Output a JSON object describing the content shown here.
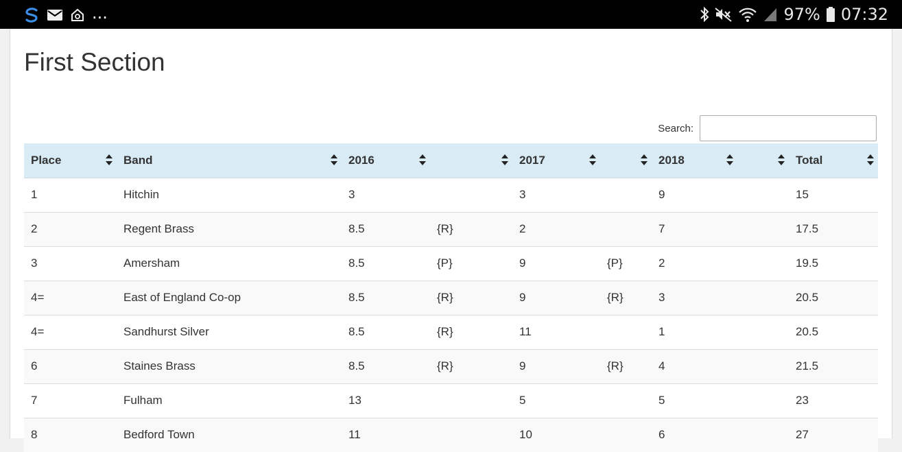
{
  "status_bar": {
    "icons_left": [
      "app-s-icon",
      "mail-icon",
      "home-icon"
    ],
    "more": "...",
    "icons_right": [
      "bluetooth-icon",
      "mute-icon",
      "wifi-icon",
      "signal-icon",
      "battery-icon"
    ],
    "battery_percent": "97%",
    "time": "07:32"
  },
  "page": {
    "title": "First Section"
  },
  "search": {
    "label": "Search:",
    "value": ""
  },
  "table": {
    "headers": [
      "Place",
      "Band",
      "2016",
      "",
      "2017",
      "",
      "2018",
      "",
      "Total"
    ],
    "rows": [
      [
        "1",
        "Hitchin",
        "3",
        "",
        "3",
        "",
        "9",
        "",
        "15"
      ],
      [
        "2",
        "Regent Brass",
        "8.5",
        "{R}",
        "2",
        "",
        "7",
        "",
        "17.5"
      ],
      [
        "3",
        "Amersham",
        "8.5",
        "{P}",
        "9",
        "{P}",
        "2",
        "",
        "19.5"
      ],
      [
        "4=",
        "East of England Co-op",
        "8.5",
        "{R}",
        "9",
        "{R}",
        "3",
        "",
        "20.5"
      ],
      [
        "4=",
        "Sandhurst Silver",
        "8.5",
        "{R}",
        "11",
        "",
        "1",
        "",
        "20.5"
      ],
      [
        "6",
        "Staines Brass",
        "8.5",
        "{R}",
        "9",
        "{R}",
        "4",
        "",
        "21.5"
      ],
      [
        "7",
        "Fulham",
        "13",
        "",
        "5",
        "",
        "5",
        "",
        "23"
      ],
      [
        "8",
        "Bedford Town",
        "11",
        "",
        "10",
        "",
        "6",
        "",
        "27"
      ]
    ]
  },
  "colors": {
    "header_bg": "#d9ebf5",
    "stripe_bg": "#f9f9f9",
    "status_bar_bg": "#000000"
  }
}
